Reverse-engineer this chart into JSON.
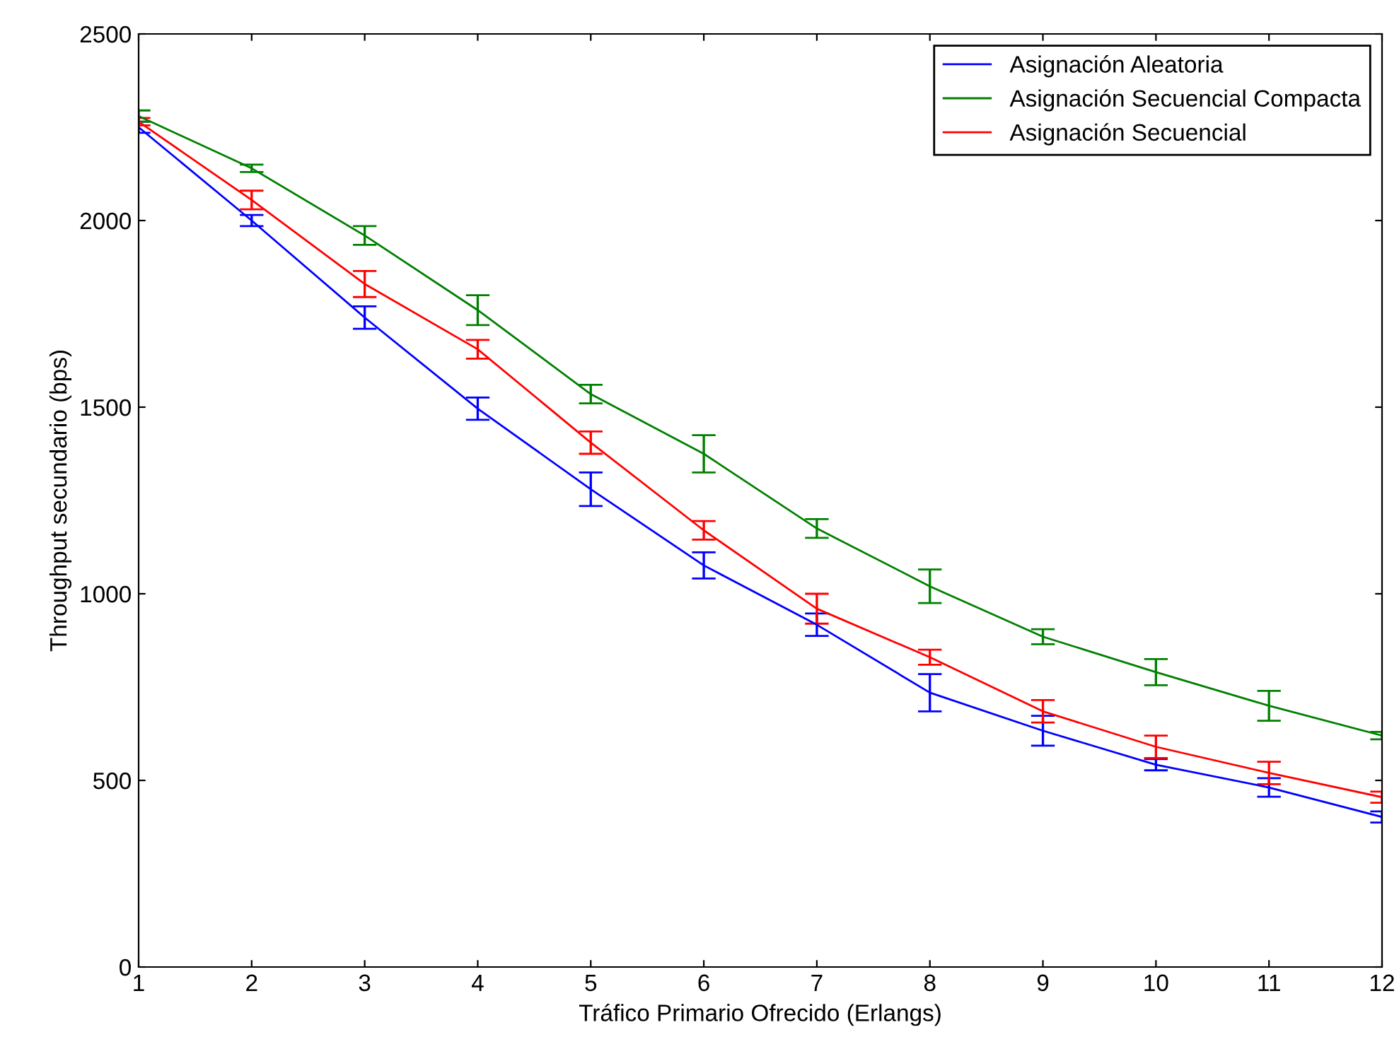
{
  "chart_data": {
    "type": "line",
    "xlabel": "Tráfico Primario Ofrecido (Erlangs)",
    "ylabel": "Throughput secundario (bps)",
    "x": [
      1,
      2,
      3,
      4,
      5,
      6,
      7,
      8,
      9,
      10,
      11,
      12
    ],
    "series": [
      {
        "name": "Asignación Aleatoria",
        "color": "#0000ff",
        "values": [
          2250,
          2000,
          1740,
          1496,
          1280,
          1076,
          917,
          735,
          633,
          542,
          481,
          402
        ],
        "errors": [
          15,
          15,
          30,
          30,
          45,
          35,
          30,
          50,
          40,
          15,
          25,
          15
        ]
      },
      {
        "name": "Asignación Secuencial Compacta",
        "color": "#008000",
        "values": [
          2280,
          2140,
          1960,
          1760,
          1535,
          1375,
          1175,
          1020,
          885,
          790,
          700,
          620
        ],
        "errors": [
          15,
          10,
          25,
          40,
          25,
          50,
          25,
          45,
          20,
          35,
          40,
          10
        ]
      },
      {
        "name": "Asignación Secuencial",
        "color": "#ff0000",
        "values": [
          2265,
          2055,
          1830,
          1655,
          1405,
          1170,
          960,
          830,
          685,
          590,
          520,
          455
        ],
        "errors": [
          10,
          25,
          35,
          25,
          30,
          25,
          40,
          20,
          30,
          30,
          30,
          15
        ]
      }
    ],
    "xlim": [
      1,
      12
    ],
    "xticks": [
      1,
      2,
      3,
      4,
      5,
      6,
      7,
      8,
      9,
      10,
      11,
      12
    ],
    "ylim": [
      0,
      2500
    ],
    "yticks": [
      0,
      500,
      1000,
      1500,
      2000,
      2500
    ],
    "grid": false,
    "legend": "top right",
    "marker": "none",
    "line_style": "solid"
  }
}
